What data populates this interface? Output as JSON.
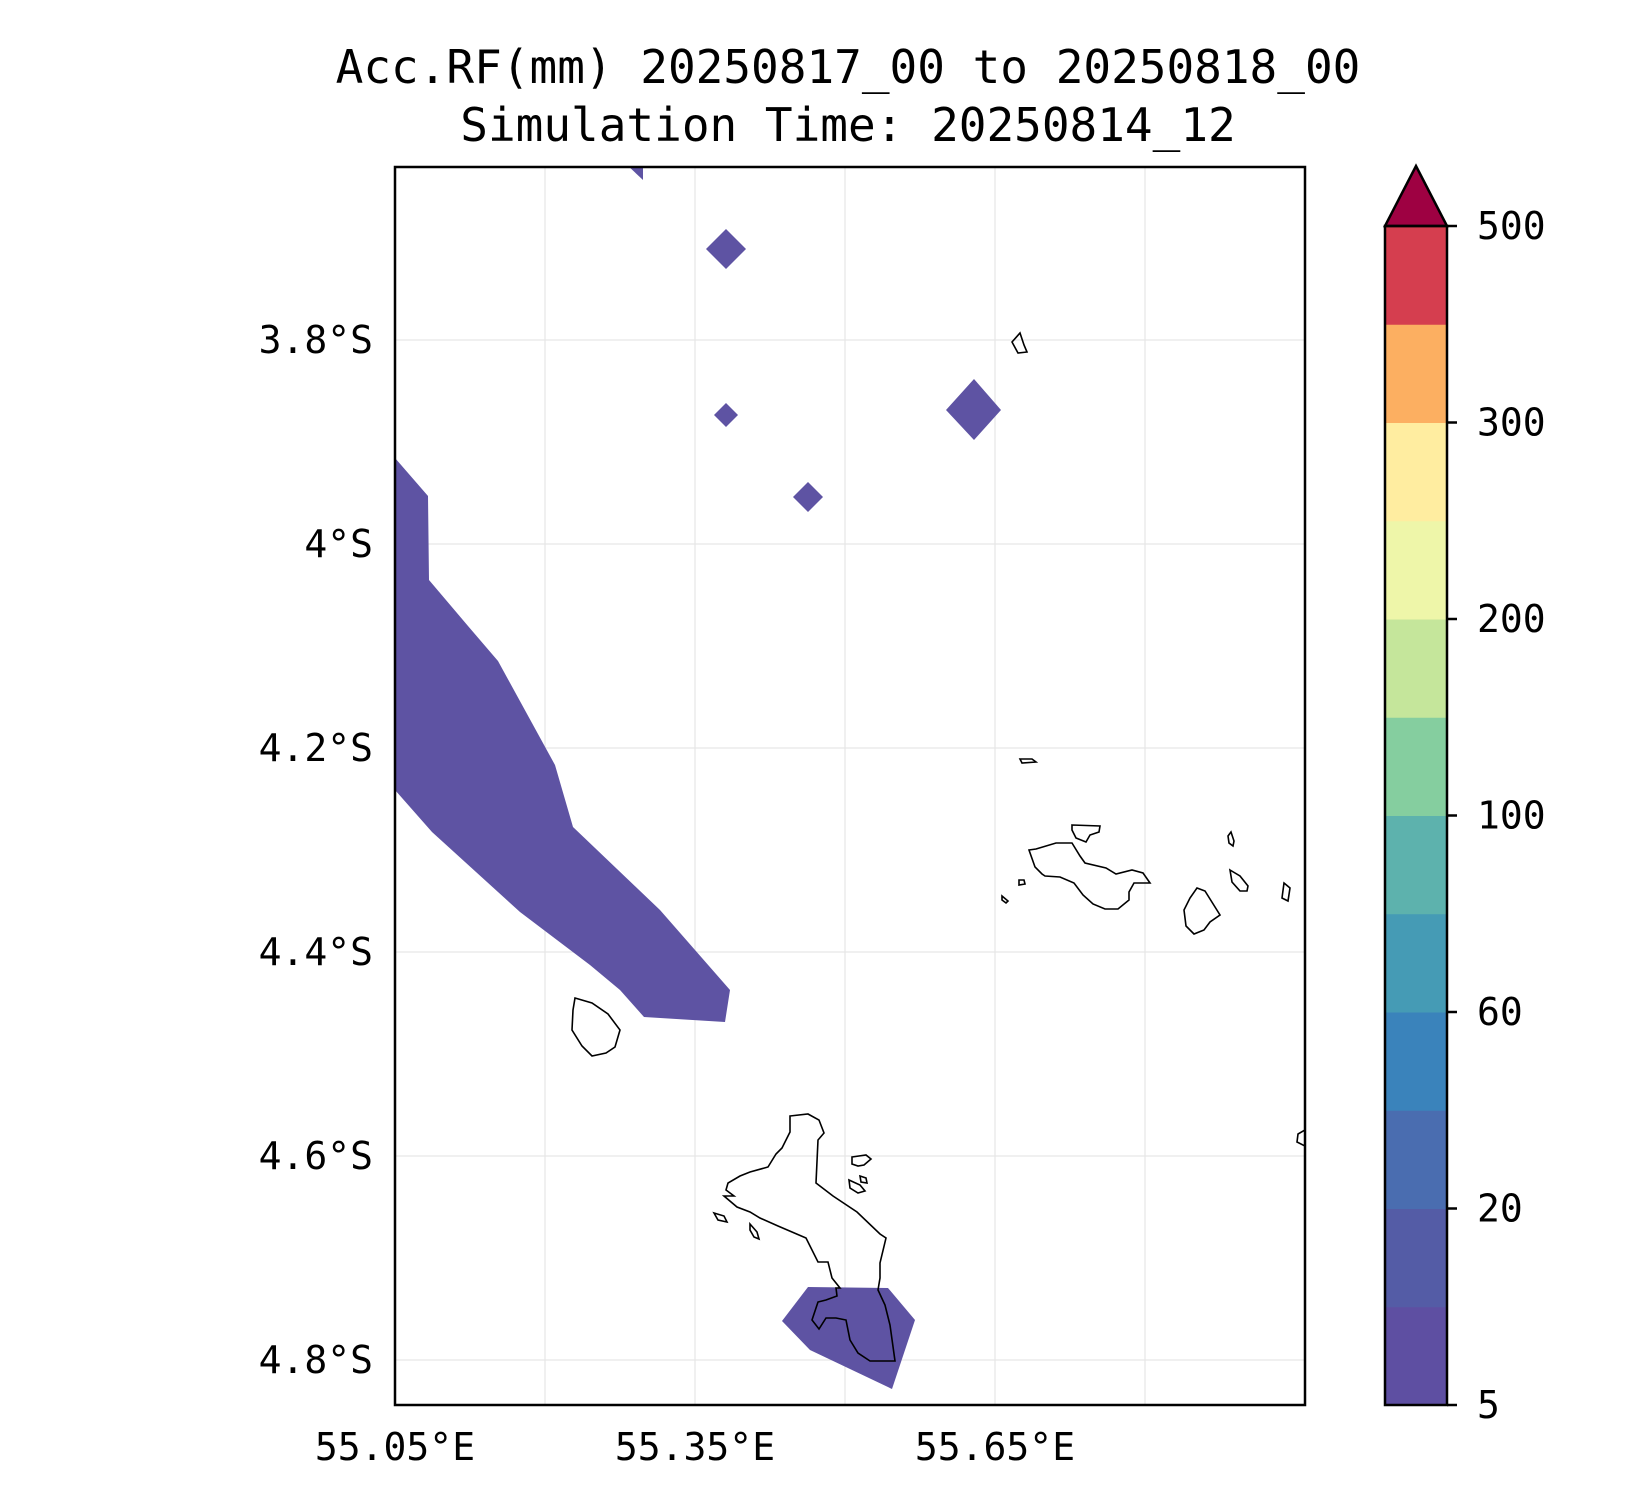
{
  "title_line1": "Acc.RF(mm) 20250817_00 to 20250818_00",
  "title_line2": "Simulation Time: 20250814_12",
  "map": {
    "extent": {
      "lon_min": 55.05,
      "lon_max": 55.94,
      "lat_min": -4.84,
      "lat_max": -3.63
    },
    "lon_ticks": [
      {
        "value": 55.05,
        "label": "55.05°E"
      },
      {
        "value": 55.35,
        "label": "55.35°E"
      },
      {
        "value": 55.65,
        "label": "55.65°E"
      }
    ],
    "lon_grid": [
      55.05,
      55.2,
      55.35,
      55.5,
      55.65,
      55.8
    ],
    "lat_ticks": [
      {
        "value": -3.8,
        "label": "3.8°S"
      },
      {
        "value": -4.0,
        "label": "4°S"
      },
      {
        "value": -4.2,
        "label": "4.2°S"
      },
      {
        "value": -4.4,
        "label": "4.4°S"
      },
      {
        "value": -4.6,
        "label": "4.6°S"
      },
      {
        "value": -4.8,
        "label": "4.8°S"
      }
    ],
    "rain_color": "#5e53a3"
  },
  "colorbar": {
    "levels": [
      5,
      10,
      20,
      40,
      60,
      80,
      100,
      150,
      200,
      250,
      300,
      400,
      500
    ],
    "colors": [
      "#5e4fa2",
      "#545ca6",
      "#4a6db0",
      "#3a83bb",
      "#459bb5",
      "#5db2ad",
      "#85ce9f",
      "#c5e69b",
      "#eef6a9",
      "#ffeda0",
      "#fcaf61",
      "#d53e4f"
    ],
    "extend_color": "#9e0142",
    "ticks": [
      {
        "value": 5,
        "label": "5"
      },
      {
        "value": 20,
        "label": "20"
      },
      {
        "value": 60,
        "label": "60"
      },
      {
        "value": 100,
        "label": "100"
      },
      {
        "value": 200,
        "label": "200"
      },
      {
        "value": 300,
        "label": "300"
      },
      {
        "value": 500,
        "label": "500"
      }
    ]
  }
}
